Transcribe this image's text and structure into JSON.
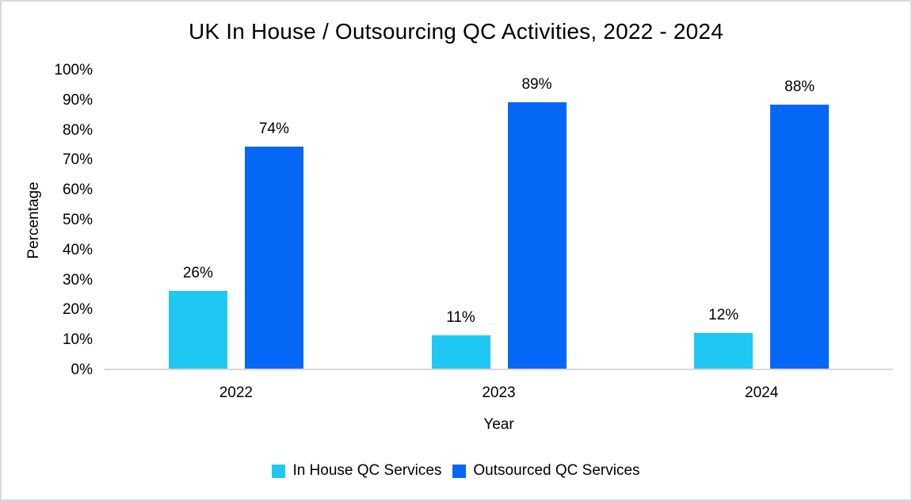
{
  "chart_data": {
    "type": "bar",
    "title": "UK In House / Outsourcing QC Activities, 2022 - 2024",
    "xlabel": "Year",
    "ylabel": "Percentage",
    "categories": [
      "2022",
      "2023",
      "2024"
    ],
    "series": [
      {
        "name": "In House QC Services",
        "color": "#1FC8F2",
        "values": [
          26,
          11,
          12
        ]
      },
      {
        "name": "Outsourced QC Services",
        "color": "#0567F6",
        "values": [
          74,
          89,
          88
        ]
      }
    ],
    "data_labels": [
      [
        "26%",
        "11%",
        "12%"
      ],
      [
        "74%",
        "89%",
        "88%"
      ]
    ],
    "ylim": [
      0,
      100
    ],
    "ytick_step": 10,
    "ytick_suffix": "%",
    "grid": false,
    "legend_position": "bottom"
  },
  "colors": {
    "axis_line": "#D9D9D9",
    "frame_border": "#D9D9D9",
    "text": "#000000",
    "background": "#FFFFFF"
  }
}
